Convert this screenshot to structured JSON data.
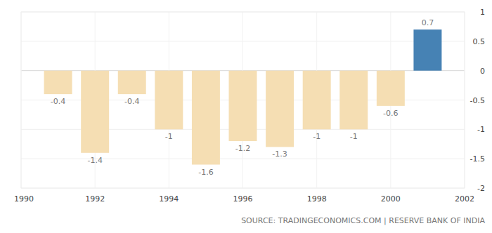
{
  "chart_data": {
    "type": "bar",
    "source": "SOURCE: TRADINGECONOMICS.COM | RESERVE BANK OF INDIA",
    "x": [
      1991,
      1992,
      1993,
      1994,
      1995,
      1996,
      1997,
      1998,
      1999,
      2000,
      2001
    ],
    "values": [
      -0.4,
      -1.4,
      -0.4,
      -1,
      -1.6,
      -1.2,
      -1.3,
      -1,
      -1,
      -0.6,
      0.7
    ],
    "colors": [
      "#f5deb3",
      "#f5deb3",
      "#f5deb3",
      "#f5deb3",
      "#f5deb3",
      "#f5deb3",
      "#f5deb3",
      "#f5deb3",
      "#f5deb3",
      "#f5deb3",
      "#4682b4"
    ],
    "xlim": [
      1990,
      2002
    ],
    "xticks": [
      1990,
      1992,
      1994,
      1996,
      1998,
      2000,
      2002
    ],
    "ylim": [
      -2,
      1
    ],
    "yticks": [
      -2,
      -1.5,
      -1,
      -0.5,
      0,
      0.5,
      1
    ],
    "grid": true,
    "data_labels": true
  }
}
